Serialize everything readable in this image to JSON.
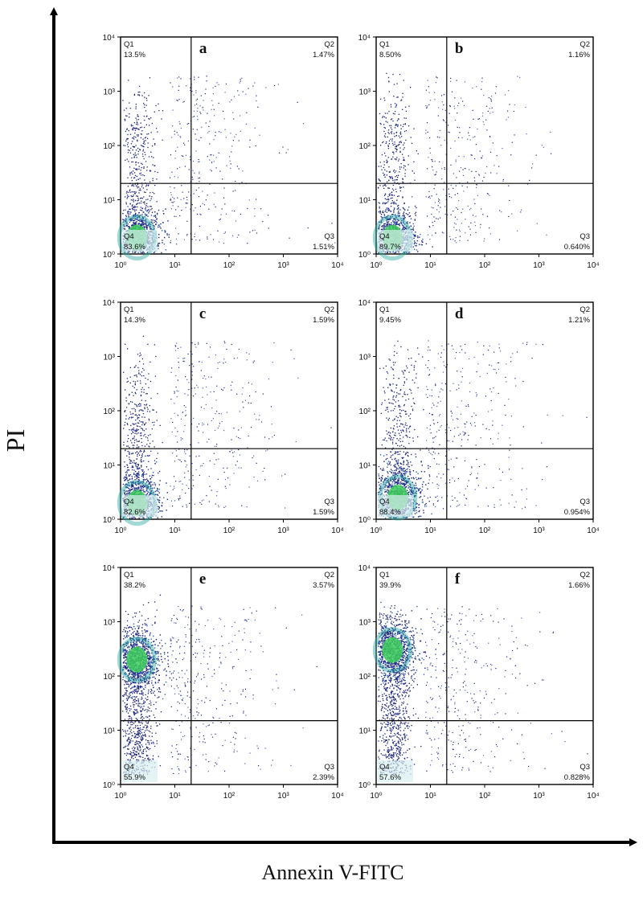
{
  "figure": {
    "xlabel": "Annexin V-FITC",
    "ylabel": "PI"
  },
  "colors": {
    "dot_blue": "#1a237e",
    "dot_mid": "#2e63b5",
    "density_green": "#3ecf5a",
    "axis": "#000000"
  },
  "chart_data": [
    {
      "type": "scatter",
      "panel": "a",
      "xscale": "log",
      "yscale": "log",
      "xlim": [
        1,
        10000
      ],
      "ylim": [
        1,
        10000
      ],
      "x_ticks": [
        "10⁰",
        "10¹",
        "10²",
        "10³",
        "10⁴"
      ],
      "y_ticks": [
        "10⁰",
        "10¹",
        "10²",
        "10³",
        "10⁴"
      ],
      "gate": {
        "x": 20,
        "y": 20
      },
      "quadrants": {
        "Q1": {
          "name": "Q1",
          "value": "13.5%"
        },
        "Q2": {
          "name": "Q2",
          "value": "1.47%"
        },
        "Q3": {
          "name": "Q3",
          "value": "1.51%"
        },
        "Q4": {
          "name": "Q4",
          "value": "83.6%"
        }
      },
      "population_center": {
        "x": 2,
        "y": 2
      }
    },
    {
      "type": "scatter",
      "panel": "b",
      "xscale": "log",
      "yscale": "log",
      "xlim": [
        1,
        10000
      ],
      "ylim": [
        1,
        10000
      ],
      "x_ticks": [
        "10⁰",
        "10¹",
        "10²",
        "10³",
        "10⁴"
      ],
      "y_ticks": [
        "10⁰",
        "10¹",
        "10²",
        "10³",
        "10⁴"
      ],
      "gate": {
        "x": 20,
        "y": 20
      },
      "quadrants": {
        "Q1": {
          "name": "Q1",
          "value": "8.50%"
        },
        "Q2": {
          "name": "Q2",
          "value": "1.16%"
        },
        "Q3": {
          "name": "Q3",
          "value": "0.640%"
        },
        "Q4": {
          "name": "Q4",
          "value": "89.7%"
        }
      },
      "population_center": {
        "x": 2,
        "y": 2
      }
    },
    {
      "type": "scatter",
      "panel": "c",
      "xscale": "log",
      "yscale": "log",
      "xlim": [
        1,
        10000
      ],
      "ylim": [
        1,
        10000
      ],
      "x_ticks": [
        "10⁰",
        "10¹",
        "10²",
        "10³",
        "10⁴"
      ],
      "y_ticks": [
        "10⁰",
        "10¹",
        "10²",
        "10³",
        "10⁴"
      ],
      "gate": {
        "x": 20,
        "y": 20
      },
      "quadrants": {
        "Q1": {
          "name": "Q1",
          "value": "14.3%"
        },
        "Q2": {
          "name": "Q2",
          "value": "1.59%"
        },
        "Q3": {
          "name": "Q3",
          "value": "1.59%"
        },
        "Q4": {
          "name": "Q4",
          "value": "82.6%"
        }
      },
      "population_center": {
        "x": 2,
        "y": 2
      }
    },
    {
      "type": "scatter",
      "panel": "d",
      "xscale": "log",
      "yscale": "log",
      "xlim": [
        1,
        10000
      ],
      "ylim": [
        1,
        10000
      ],
      "x_ticks": [
        "10⁰",
        "10¹",
        "10²",
        "10³",
        "10⁴"
      ],
      "y_ticks": [
        "10⁰",
        "10¹",
        "10²",
        "10³",
        "10⁴"
      ],
      "gate": {
        "x": 20,
        "y": 20
      },
      "quadrants": {
        "Q1": {
          "name": "Q1",
          "value": "9.45%"
        },
        "Q2": {
          "name": "Q2",
          "value": "1.21%"
        },
        "Q3": {
          "name": "Q3",
          "value": "0.954%"
        },
        "Q4": {
          "name": "Q4",
          "value": "88.4%"
        }
      },
      "population_center": {
        "x": 2.5,
        "y": 2.5
      }
    },
    {
      "type": "scatter",
      "panel": "e",
      "xscale": "log",
      "yscale": "log",
      "xlim": [
        1,
        10000
      ],
      "ylim": [
        1,
        10000
      ],
      "x_ticks": [
        "10⁰",
        "10¹",
        "10²",
        "10³",
        "10⁴"
      ],
      "y_ticks": [
        "10⁰",
        "10¹",
        "10²",
        "10³",
        "10⁴"
      ],
      "gate": {
        "x": 20,
        "y": 15
      },
      "quadrants": {
        "Q1": {
          "name": "Q1",
          "value": "38.2%"
        },
        "Q2": {
          "name": "Q2",
          "value": "3.57%"
        },
        "Q3": {
          "name": "Q3",
          "value": "2.39%"
        },
        "Q4": {
          "name": "Q4",
          "value": "55.9%"
        }
      },
      "population_center": {
        "x": 2,
        "y": 200
      }
    },
    {
      "type": "scatter",
      "panel": "f",
      "xscale": "log",
      "yscale": "log",
      "xlim": [
        1,
        10000
      ],
      "ylim": [
        1,
        10000
      ],
      "x_ticks": [
        "10⁰",
        "10¹",
        "10²",
        "10³",
        "10⁴"
      ],
      "y_ticks": [
        "10⁰",
        "10¹",
        "10²",
        "10³",
        "10⁴"
      ],
      "gate": {
        "x": 20,
        "y": 15
      },
      "quadrants": {
        "Q1": {
          "name": "Q1",
          "value": "39.9%"
        },
        "Q2": {
          "name": "Q2",
          "value": "1.66%"
        },
        "Q3": {
          "name": "Q3",
          "value": "0.828%"
        },
        "Q4": {
          "name": "Q4",
          "value": "57.6%"
        }
      },
      "population_center": {
        "x": 2,
        "y": 300
      }
    }
  ]
}
